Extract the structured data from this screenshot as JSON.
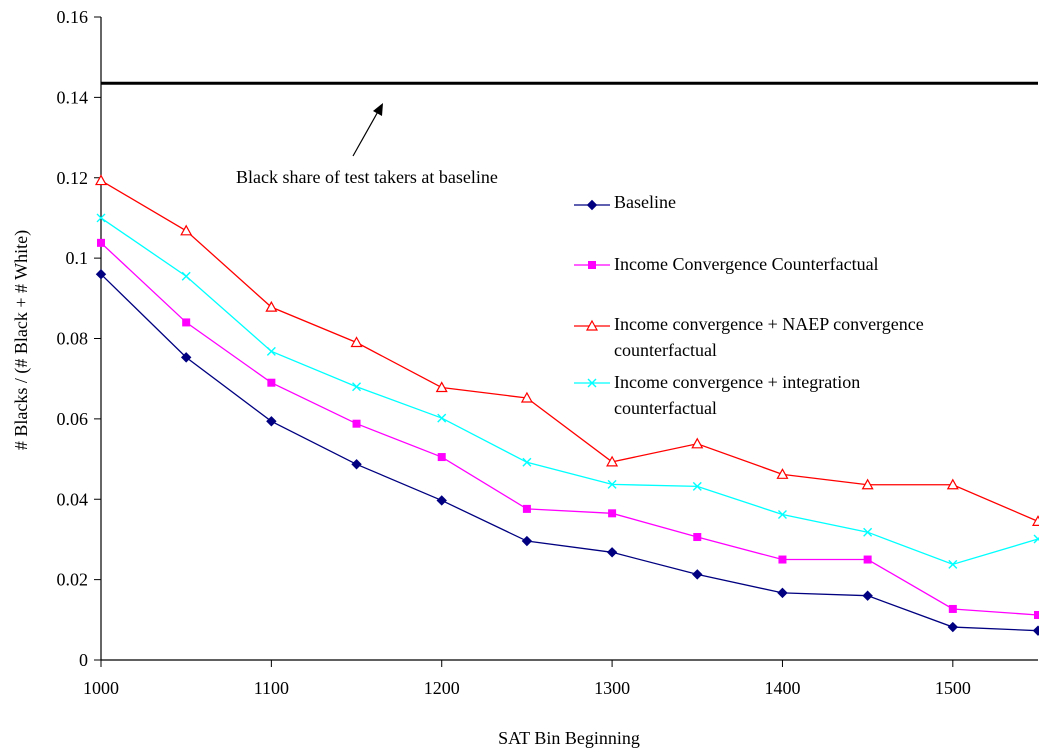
{
  "chart_data": {
    "type": "line",
    "title": "",
    "xlabel": "SAT Bin Beginning",
    "ylabel": "# Blacks / (# Black + # White)",
    "x": [
      1000,
      1050,
      1100,
      1150,
      1200,
      1250,
      1300,
      1350,
      1400,
      1450,
      1500,
      1550
    ],
    "xlim": [
      1000,
      1550
    ],
    "ylim": [
      0,
      0.16
    ],
    "xticks": [
      "1000",
      "1100",
      "1200",
      "1300",
      "1400",
      "1500"
    ],
    "xtick_values": [
      1000,
      1100,
      1200,
      1300,
      1400,
      1500
    ],
    "yticks": [
      "0",
      "0.02",
      "0.04",
      "0.06",
      "0.08",
      "0.1",
      "0.12",
      "0.14",
      "0.16"
    ],
    "ytick_values": [
      0,
      0.02,
      0.04,
      0.06,
      0.08,
      0.1,
      0.12,
      0.14,
      0.16
    ],
    "grid": false,
    "legend_position": "right",
    "series": [
      {
        "name": "Baseline",
        "color": "#000080",
        "marker": "diamond",
        "values": [
          0.096,
          0.0753,
          0.0594,
          0.0487,
          0.0397,
          0.0296,
          0.0268,
          0.0213,
          0.0167,
          0.016,
          0.0082,
          0.0073
        ]
      },
      {
        "name": "Income Convergence Counterfactual",
        "color": "#ff00ff",
        "marker": "square",
        "values": [
          0.1038,
          0.084,
          0.069,
          0.0588,
          0.0505,
          0.0376,
          0.0365,
          0.0306,
          0.025,
          0.025,
          0.0127,
          0.0112
        ]
      },
      {
        "name": "Income convergence + NAEP convergence counterfactual",
        "legend_lines": [
          "Income convergence + NAEP convergence",
          "counterfactual"
        ],
        "color": "#ff0000",
        "marker": "triangle",
        "values": [
          0.1193,
          0.1068,
          0.0878,
          0.079,
          0.0678,
          0.0652,
          0.0493,
          0.0538,
          0.0462,
          0.0436,
          0.0436,
          0.0345
        ]
      },
      {
        "name": "Income convergence + integration counterfactual",
        "legend_lines": [
          "Income convergence + integration",
          "counterfactual"
        ],
        "color": "#00ffff",
        "marker": "x",
        "values": [
          0.11,
          0.0955,
          0.0768,
          0.068,
          0.0602,
          0.0492,
          0.0437,
          0.0432,
          0.0362,
          0.0318,
          0.0238,
          0.0301
        ]
      }
    ],
    "reference_line": {
      "value": 0.1435,
      "color": "#000000"
    },
    "annotation": {
      "text": "Black share of test takers at baseline",
      "points_to_value": 0.1435
    }
  }
}
